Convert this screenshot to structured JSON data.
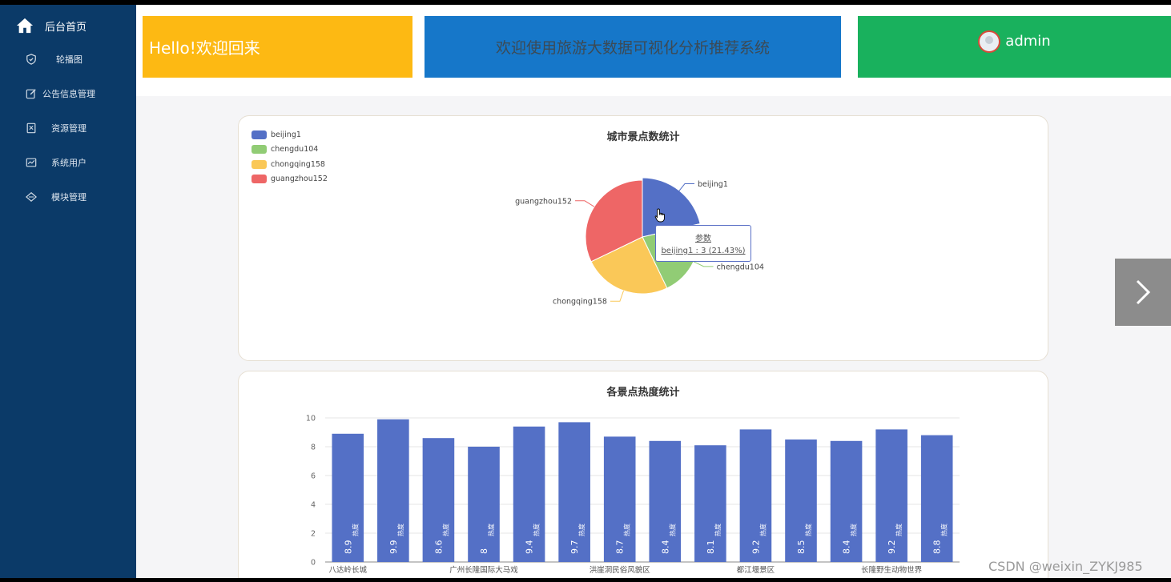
{
  "sidebar": {
    "home_label": "后台首页",
    "items": [
      {
        "label": "轮播图",
        "icon": "shield-icon"
      },
      {
        "label": "公告信息管理",
        "icon": "edit-icon"
      },
      {
        "label": "资源管理",
        "icon": "resource-icon"
      },
      {
        "label": "系统用户",
        "icon": "chart-line-icon"
      },
      {
        "label": "模块管理",
        "icon": "diamond-icon"
      }
    ]
  },
  "header": {
    "greeting": "Hello!欢迎回来",
    "system_title": "欢迎使用旅游大数据可视化分析推荐系统",
    "username": "admin",
    "colors": {
      "greeting_bg": "#fdb913",
      "title_bg": "#1677c9",
      "user_bg": "#19b15d"
    }
  },
  "chart_data": [
    {
      "type": "pie",
      "title": "城市景点数统计",
      "legend_position": "top-left",
      "slices": [
        {
          "name": "beijing1",
          "value": 3,
          "color": "#5470c6"
        },
        {
          "name": "chengdu104",
          "value": 3,
          "color": "#91cc75"
        },
        {
          "name": "chongqing158",
          "value": 3.5,
          "color": "#fac858"
        },
        {
          "name": "guangzhou152",
          "value": 4.5,
          "color": "#ee6666"
        }
      ],
      "tooltip": {
        "title": "参数",
        "text": "beijing1 : 3 (21.43%)"
      }
    },
    {
      "type": "bar",
      "title": "各景点热度统计",
      "ylim": [
        0,
        10
      ],
      "yticks": [
        0,
        2,
        4,
        6,
        8,
        10
      ],
      "grid": true,
      "bar_color": "#5470c6",
      "bar_label_suffix": "热度",
      "values": [
        8.9,
        9.9,
        8.6,
        8,
        9.4,
        9.7,
        8.7,
        8.4,
        8.1,
        9.2,
        8.5,
        8.4,
        9.2,
        8.8
      ],
      "x_tick_labels": [
        {
          "index": 0,
          "label": "八达岭长城"
        },
        {
          "index": 3,
          "label": "广州长隆国际大马戏"
        },
        {
          "index": 6,
          "label": "洪崖洞民俗风貌区"
        },
        {
          "index": 9,
          "label": "都江堰景区"
        },
        {
          "index": 12,
          "label": "长隆野生动物世界"
        }
      ]
    }
  ],
  "watermark": "CSDN @weixin_ZYKJ985"
}
